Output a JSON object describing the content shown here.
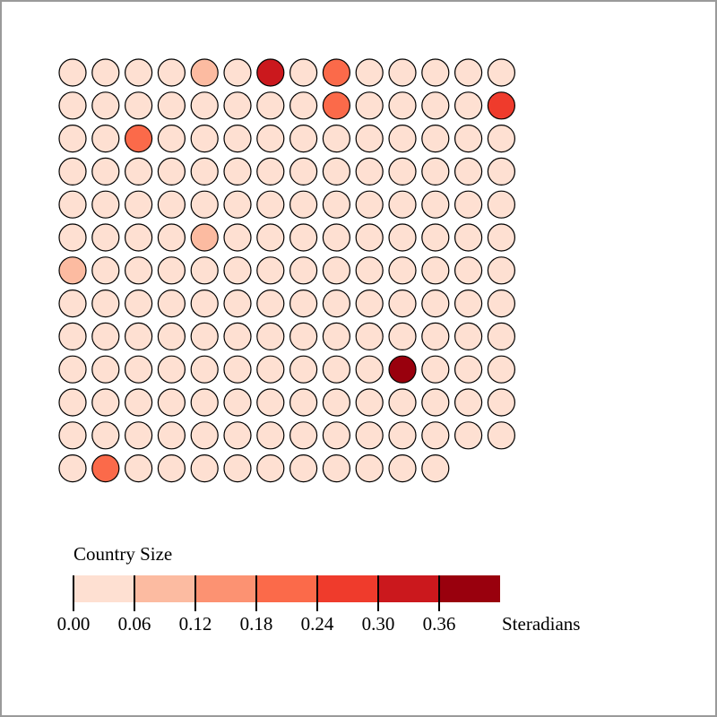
{
  "chart_data": {
    "type": "heatmap",
    "layout": "dot-grid",
    "columns": 14,
    "count": 180,
    "default_value": 0.03,
    "highlighted": [
      {
        "index": 4,
        "value": 0.09
      },
      {
        "index": 6,
        "value": 0.33
      },
      {
        "index": 8,
        "value": 0.2
      },
      {
        "index": 22,
        "value": 0.2
      },
      {
        "index": 27,
        "value": 0.27
      },
      {
        "index": 30,
        "value": 0.21
      },
      {
        "index": 74,
        "value": 0.09
      },
      {
        "index": 84,
        "value": 0.09
      },
      {
        "index": 136,
        "value": 0.38
      },
      {
        "index": 169,
        "value": 0.2
      }
    ],
    "legend": {
      "title": "Country Size",
      "unit": "Steradians",
      "thresholds": [
        0.0,
        0.06,
        0.12,
        0.18,
        0.24,
        0.3,
        0.36,
        0.42
      ],
      "tick_labels": [
        "0.00",
        "0.06",
        "0.12",
        "0.18",
        "0.24",
        "0.30",
        "0.36"
      ],
      "colors": [
        "#fee0d2",
        "#fcbba1",
        "#fc9272",
        "#fb6a4a",
        "#ef3b2c",
        "#cb181d",
        "#99000d"
      ]
    }
  }
}
